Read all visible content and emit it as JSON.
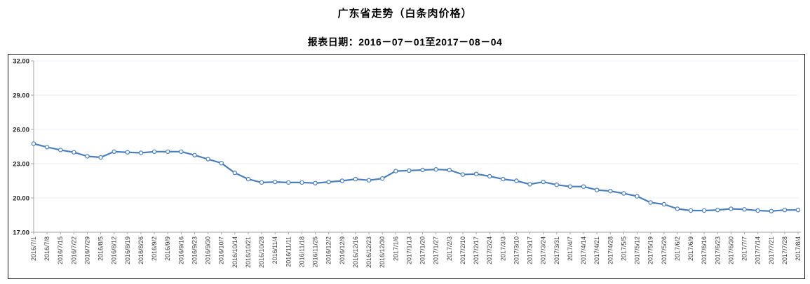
{
  "header": {
    "title": "广东省走势（白条肉价格）",
    "subtitle": "报表日期：2016－07－01至2017－08－04"
  },
  "chart_data": {
    "type": "line",
    "title": "广东省走势（白条肉价格）",
    "subtitle": "报表日期：2016－07－01至2017－08－04",
    "xlabel": "",
    "ylabel": "",
    "ylim": [
      17,
      32
    ],
    "y_tick_step": 3,
    "y_ticks": [
      "32.00",
      "29.00",
      "26.00",
      "23.00",
      "20.00",
      "17.00"
    ],
    "grid": "horizontal",
    "legend": "none",
    "x": [
      "2016/7/1",
      "2016/7/8",
      "2016/7/15",
      "2016/7/22",
      "2016/7/29",
      "2016/8/5",
      "2016/8/12",
      "2016/8/19",
      "2016/8/26",
      "2016/9/2",
      "2016/9/9",
      "2016/9/16",
      "2016/9/23",
      "2016/9/30",
      "2016/10/7",
      "2016/10/14",
      "2016/10/21",
      "2016/10/28",
      "2016/11/4",
      "2016/11/11",
      "2016/11/18",
      "2016/11/25",
      "2016/12/2",
      "2016/12/9",
      "2016/12/16",
      "2016/12/23",
      "2016/12/30",
      "2017/1/6",
      "2017/1/13",
      "2017/1/20",
      "2017/1/27",
      "2017/2/3",
      "2017/2/10",
      "2017/2/17",
      "2017/2/24",
      "2017/3/3",
      "2017/3/10",
      "2017/3/17",
      "2017/3/24",
      "2017/3/31",
      "2017/4/7",
      "2017/4/14",
      "2017/4/21",
      "2017/4/28",
      "2017/5/5",
      "2017/5/12",
      "2017/5/19",
      "2017/5/26",
      "2017/6/2",
      "2017/6/9",
      "2017/6/16",
      "2017/6/23",
      "2017/6/30",
      "2017/7/7",
      "2017/7/14",
      "2017/7/21",
      "2017/7/28",
      "2017/8/4"
    ],
    "series": [
      {
        "name": "白条肉价格",
        "values": [
          24.75,
          24.45,
          24.2,
          24.0,
          23.65,
          23.55,
          24.05,
          24.0,
          23.95,
          24.05,
          24.05,
          24.05,
          23.75,
          23.4,
          23.05,
          22.2,
          21.65,
          21.35,
          21.4,
          21.35,
          21.35,
          21.3,
          21.4,
          21.5,
          21.65,
          21.55,
          21.7,
          22.35,
          22.4,
          22.45,
          22.5,
          22.45,
          22.05,
          22.1,
          21.9,
          21.65,
          21.5,
          21.2,
          21.4,
          21.15,
          21.0,
          21.0,
          20.7,
          20.6,
          20.4,
          20.15,
          19.6,
          19.45,
          19.05,
          18.9,
          18.9,
          18.95,
          19.05,
          19.0,
          18.9,
          18.85,
          18.95,
          18.95
        ]
      }
    ],
    "colors": {
      "line": "#4a7ebb",
      "marker_fill": "#ffffff",
      "marker_stroke": "#4a7ebb",
      "grid": "#e8edf5",
      "axis": "#a6a6a6",
      "y_label": "#262626",
      "x_label": "#3f3f3f",
      "border": "#1a1a1a",
      "background": "#ffffff"
    }
  }
}
